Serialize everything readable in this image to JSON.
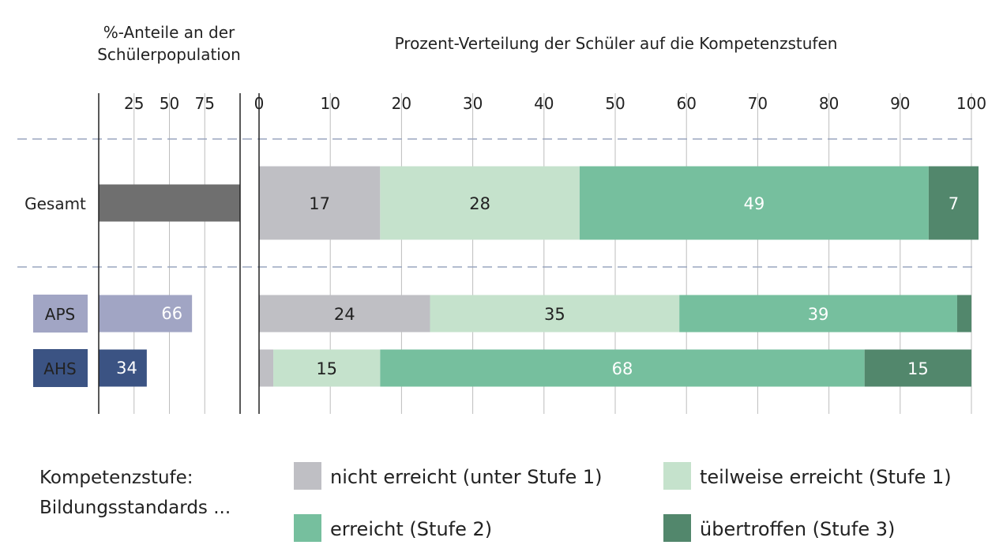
{
  "chart_data": [
    {
      "type": "bar",
      "title": "%-Anteile an der Schülerpopulation",
      "title_lines": [
        "%-Anteile an der",
        "Schülerpopulation"
      ],
      "xlim": [
        0,
        100
      ],
      "tick_labels": [
        "25",
        "50",
        "75"
      ],
      "tick_values": [
        25,
        50,
        75
      ],
      "grid": true,
      "categories": [
        "Gesamt",
        "APS",
        "AHS"
      ],
      "values": [
        100,
        66,
        34
      ],
      "value_labels": [
        "",
        "66",
        "34"
      ],
      "bar_colors": [
        "#6f6f6f",
        "#a1a5c4",
        "#3b5383"
      ]
    },
    {
      "type": "bar",
      "stacked": true,
      "orientation": "horizontal",
      "title": "Prozent-Verteilung der Schüler auf die Kompetenzstufen",
      "xlim": [
        0,
        100
      ],
      "tick_labels": [
        "0",
        "10",
        "20",
        "30",
        "40",
        "50",
        "60",
        "70",
        "80",
        "90",
        "100"
      ],
      "tick_values": [
        0,
        10,
        20,
        30,
        40,
        50,
        60,
        70,
        80,
        90,
        100
      ],
      "grid": true,
      "categories": [
        "Gesamt",
        "APS",
        "AHS"
      ],
      "series": [
        {
          "name": "nicht erreicht (unter Stufe 1)",
          "color": "#bfbfc4",
          "label_color": "#222222",
          "values": [
            17,
            24,
            2
          ],
          "labels": [
            "17",
            "24",
            ""
          ]
        },
        {
          "name": "teilweise erreicht (Stufe 1)",
          "color": "#c5e2cc",
          "label_color": "#222222",
          "values": [
            28,
            35,
            15
          ],
          "labels": [
            "28",
            "35",
            "15"
          ]
        },
        {
          "name": "erreicht (Stufe 2)",
          "color": "#76bf9e",
          "label_color": "#ffffff",
          "values": [
            49,
            39,
            68
          ],
          "labels": [
            "49",
            "39",
            "68"
          ]
        },
        {
          "name": "übertroffen (Stufe 3)",
          "color": "#52876c",
          "label_color": "#ffffff",
          "values": [
            7,
            2,
            15
          ],
          "labels": [
            "7",
            "",
            "15"
          ]
        }
      ]
    }
  ],
  "row_label_style": [
    {
      "label": "Gesamt",
      "box": false
    },
    {
      "label": "APS",
      "box": true,
      "box_color": "#a1a5c4",
      "text_color": "#ffffff"
    },
    {
      "label": "AHS",
      "box": true,
      "box_color": "#3b5383",
      "text_color": "#ffffff"
    }
  ],
  "legend": {
    "heading_lines": [
      "Kompetenzstufe:",
      "Bildungsstandards ..."
    ],
    "placement": "bottom"
  }
}
